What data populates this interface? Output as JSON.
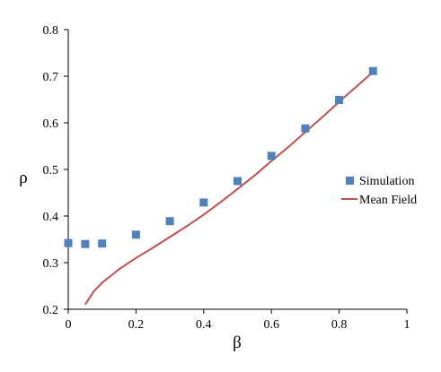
{
  "chart_data": {
    "type": "scatter",
    "title": "",
    "xlabel": "β",
    "ylabel": "ρ",
    "xlim": [
      0,
      1
    ],
    "ylim": [
      0.2,
      0.8
    ],
    "x_ticks": [
      "0",
      "0.2",
      "0.4",
      "0.6",
      "0.8",
      "1"
    ],
    "y_ticks": [
      "0.2",
      "0.3",
      "0.4",
      "0.5",
      "0.6",
      "0.7",
      "0.8"
    ],
    "grid": false,
    "legend_position": "right",
    "series": [
      {
        "name": "Simulation",
        "kind": "markers",
        "marker": "square",
        "color": "#4F81BD",
        "points": [
          {
            "x": 0.0,
            "y": 0.342
          },
          {
            "x": 0.05,
            "y": 0.34
          },
          {
            "x": 0.1,
            "y": 0.341
          },
          {
            "x": 0.2,
            "y": 0.36
          },
          {
            "x": 0.3,
            "y": 0.389
          },
          {
            "x": 0.4,
            "y": 0.429
          },
          {
            "x": 0.5,
            "y": 0.475
          },
          {
            "x": 0.6,
            "y": 0.529
          },
          {
            "x": 0.7,
            "y": 0.588
          },
          {
            "x": 0.8,
            "y": 0.649
          },
          {
            "x": 0.9,
            "y": 0.711
          }
        ]
      },
      {
        "name": "Mean Field",
        "kind": "line",
        "color": "#C0504D",
        "points": [
          {
            "x": 0.05,
            "y": 0.21
          },
          {
            "x": 0.075,
            "y": 0.238
          },
          {
            "x": 0.1,
            "y": 0.257
          },
          {
            "x": 0.15,
            "y": 0.286
          },
          {
            "x": 0.2,
            "y": 0.31
          },
          {
            "x": 0.25,
            "y": 0.332
          },
          {
            "x": 0.3,
            "y": 0.355
          },
          {
            "x": 0.35,
            "y": 0.378
          },
          {
            "x": 0.4,
            "y": 0.403
          },
          {
            "x": 0.45,
            "y": 0.43
          },
          {
            "x": 0.5,
            "y": 0.458
          },
          {
            "x": 0.55,
            "y": 0.487
          },
          {
            "x": 0.6,
            "y": 0.518
          },
          {
            "x": 0.65,
            "y": 0.548
          },
          {
            "x": 0.7,
            "y": 0.58
          },
          {
            "x": 0.75,
            "y": 0.612
          },
          {
            "x": 0.8,
            "y": 0.645
          },
          {
            "x": 0.85,
            "y": 0.677
          },
          {
            "x": 0.9,
            "y": 0.709
          }
        ]
      }
    ]
  }
}
